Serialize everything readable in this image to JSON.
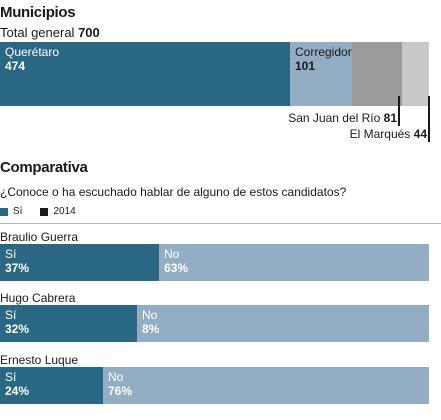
{
  "colors": {
    "si": "#2a6782",
    "no": "#92adc4",
    "queretaro": "#2a6782",
    "corregidora": "#92adc4",
    "san_juan": "#9b9b9b",
    "el_marques": "#c8c8c8",
    "legend_2014": "#1a1a1a"
  },
  "municipios": {
    "title": "Municipios",
    "total_label": "Total general",
    "total_value": "700",
    "items": [
      {
        "name": "Querétaro",
        "value": 474
      },
      {
        "name": "Corregidora",
        "value": 101
      },
      {
        "name": "San Juan del Río",
        "value": 81
      },
      {
        "name": "El Marqués",
        "value": 44
      }
    ]
  },
  "comparativa": {
    "title": "Comparativa",
    "question": "¿Conoce o ha escuchado hablar de alguno de estos candidatos?",
    "legend": [
      "Sí",
      "2014"
    ],
    "candidates": [
      {
        "name": "Braulio Guerra",
        "si_label": "Sí",
        "si": "37%",
        "no_label": "No",
        "no": "63%"
      },
      {
        "name": "Hugo Cabrera",
        "si_label": "Sí",
        "si": "32%",
        "no_label": "No",
        "no": "8%"
      },
      {
        "name": "Ernesto Luque",
        "si_label": "Sí",
        "si": "24%",
        "no_label": "No",
        "no": "76%"
      }
    ]
  },
  "chart_data": [
    {
      "type": "bar",
      "title": "Municipios",
      "subtitle": "Total general 700",
      "categories": [
        "Querétaro",
        "Corregidora",
        "San Juan del Río",
        "El Marqués"
      ],
      "values": [
        474,
        101,
        81,
        44
      ]
    },
    {
      "type": "bar",
      "title": "Comparativa",
      "subtitle": "¿Conoce o ha escuchado hablar de alguno de estos candidatos?",
      "categories": [
        "Braulio Guerra",
        "Hugo Cabrera",
        "Ernesto Luque"
      ],
      "series": [
        {
          "name": "Sí",
          "values": [
            37,
            32,
            24
          ]
        },
        {
          "name": "No",
          "values": [
            63,
            8,
            76
          ]
        }
      ]
    }
  ]
}
